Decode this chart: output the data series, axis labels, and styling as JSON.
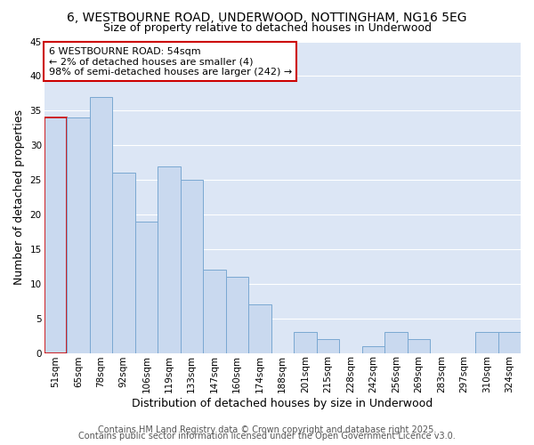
{
  "title": "6, WESTBOURNE ROAD, UNDERWOOD, NOTTINGHAM, NG16 5EG",
  "subtitle": "Size of property relative to detached houses in Underwood",
  "xlabel": "Distribution of detached houses by size in Underwood",
  "ylabel": "Number of detached properties",
  "bar_labels": [
    "51sqm",
    "65sqm",
    "78sqm",
    "92sqm",
    "106sqm",
    "119sqm",
    "133sqm",
    "147sqm",
    "160sqm",
    "174sqm",
    "188sqm",
    "201sqm",
    "215sqm",
    "228sqm",
    "242sqm",
    "256sqm",
    "269sqm",
    "283sqm",
    "297sqm",
    "310sqm",
    "324sqm"
  ],
  "bar_values": [
    34,
    34,
    37,
    26,
    19,
    27,
    25,
    12,
    11,
    7,
    0,
    3,
    2,
    0,
    1,
    3,
    2,
    0,
    0,
    3,
    3
  ],
  "bar_color": "#c9d9ef",
  "bar_edge_color": "#7aa8d2",
  "highlight_bar_index": 0,
  "highlight_edge_color": "#cc0000",
  "annotation_text": "6 WESTBOURNE ROAD: 54sqm\n← 2% of detached houses are smaller (4)\n98% of semi-detached houses are larger (242) →",
  "annotation_box_edge": "#cc0000",
  "annotation_box_face": "#ffffff",
  "ylim": [
    0,
    45
  ],
  "yticks": [
    0,
    5,
    10,
    15,
    20,
    25,
    30,
    35,
    40,
    45
  ],
  "bg_color": "#dce6f5",
  "grid_color": "#ffffff",
  "footer_line1": "Contains HM Land Registry data © Crown copyright and database right 2025.",
  "footer_line2": "Contains public sector information licensed under the Open Government Licence v3.0.",
  "title_fontsize": 10,
  "subtitle_fontsize": 9,
  "axis_label_fontsize": 9,
  "tick_fontsize": 7.5,
  "annotation_fontsize": 8,
  "footer_fontsize": 7
}
